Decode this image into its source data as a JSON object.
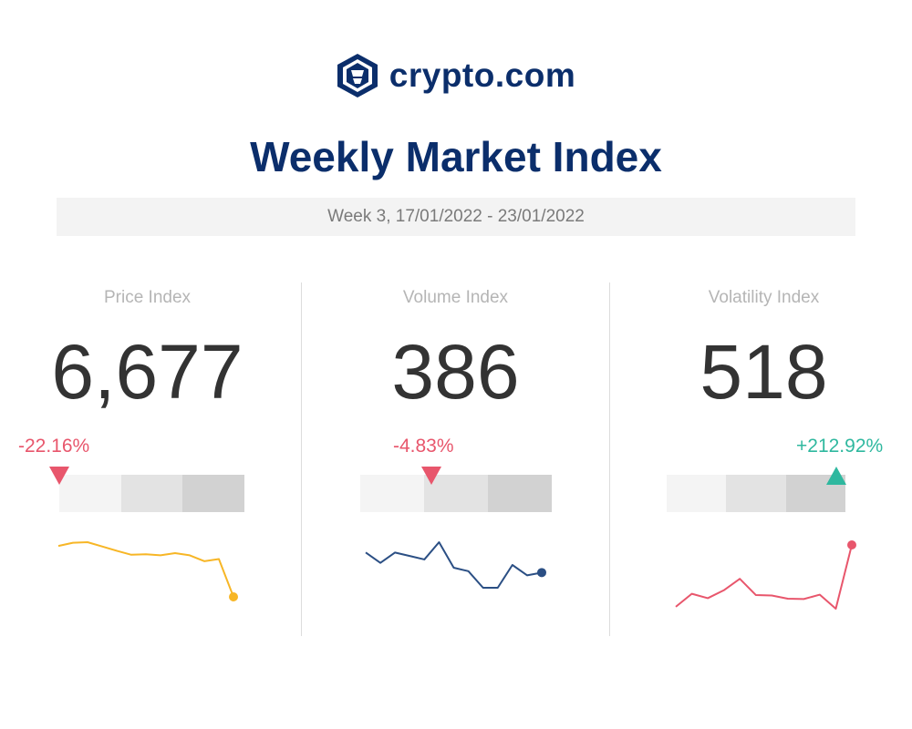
{
  "brand": {
    "name": "crypto.com",
    "logo_icon": "crypto-lion-shield-icon",
    "color": "#0b2e6b"
  },
  "title": "Weekly Market Index",
  "week_range": "Week 3, 17/01/2022 - 23/01/2022",
  "chart_data": [
    {
      "type": "line",
      "title": "Price Index",
      "value": "6,677",
      "change": "-22.16%",
      "direction": "down",
      "gauge_position": 0.0,
      "color": "#f7b626",
      "values": [
        8580,
        8700,
        8720,
        8560,
        8400,
        8250,
        8270,
        8230,
        8310,
        8230,
        8010,
        8090,
        6677
      ]
    },
    {
      "type": "line",
      "title": "Volume Index",
      "value": "386",
      "change": "-4.83%",
      "direction": "down",
      "gauge_position": 0.37,
      "color": "#2b4f84",
      "values": [
        415,
        400,
        415,
        410,
        405,
        430,
        393,
        388,
        364,
        364,
        397,
        382,
        386
      ]
    },
    {
      "type": "line",
      "title": "Volatility Index",
      "value": "518",
      "change": "+212.92%",
      "direction": "up",
      "gauge_position": 0.95,
      "color": "#e8566c",
      "values": [
        166,
        240,
        215,
        260,
        325,
        233,
        230,
        212,
        210,
        235,
        155,
        518
      ]
    }
  ]
}
